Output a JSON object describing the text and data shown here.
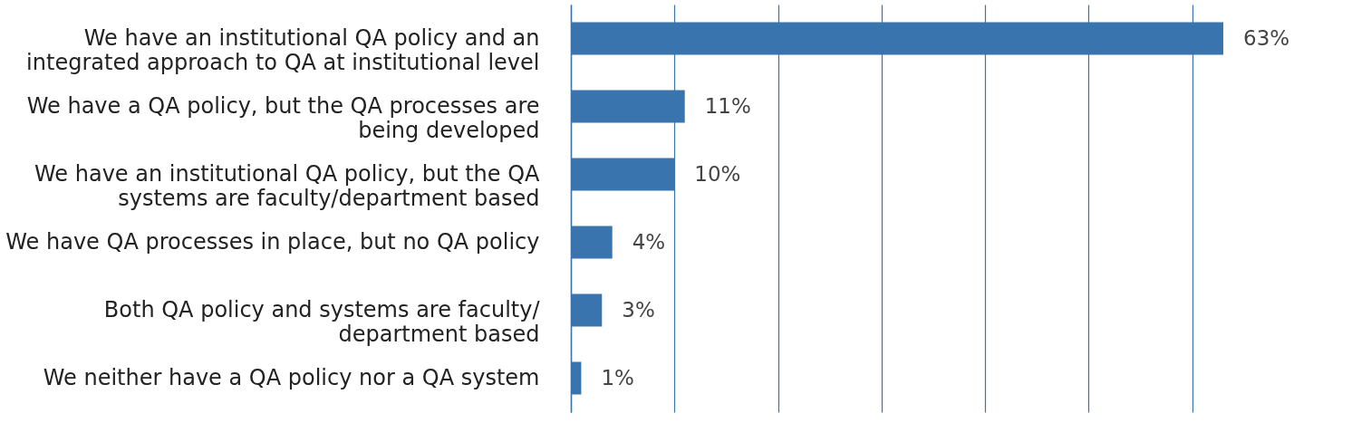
{
  "chart_data": {
    "type": "bar",
    "orientation": "horizontal",
    "categories": [
      "We have an institutional QA policy and an\nintegrated approach to QA at institutional level",
      "We have a QA policy, but the QA processes are\nbeing developed",
      "We have an institutional QA policy, but the QA\nsystems are faculty/department based",
      "We have QA processes in place, but no QA policy",
      "Both QA policy and systems are faculty/\ndepartment based",
      "We neither have a QA policy nor a QA system"
    ],
    "values": [
      63,
      11,
      10,
      4,
      3,
      1
    ],
    "value_labels": [
      "63%",
      "11%",
      "10%",
      "4%",
      "3%",
      "1%"
    ],
    "color": "#3a74ae",
    "xlim": [
      0,
      63
    ],
    "xticks": [
      {
        "value": 0,
        "label": null
      },
      {
        "value": 10,
        "label": null
      },
      {
        "value": 20,
        "label": null
      },
      {
        "value": 30,
        "label": null
      },
      {
        "value": 40,
        "label": null
      },
      {
        "value": 50,
        "label": null
      },
      {
        "value": 60,
        "label": null
      }
    ],
    "grid": "x",
    "tick_labels": "y"
  }
}
